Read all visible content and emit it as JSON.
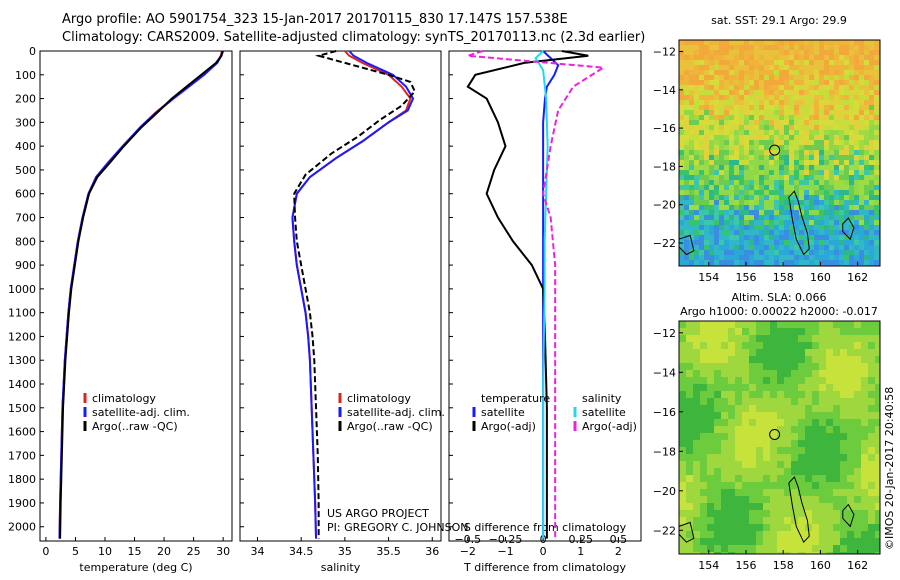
{
  "header": {
    "line1": "Argo profile: AO 5901754_323 15-Jan-2017 20170115_830 17.147S 157.538E",
    "line2": "Climatology: CARS2009. Satellite-adjusted climatology: synTS_20170113.nc (2.3d earlier)"
  },
  "colors": {
    "climatology": "#dd2222",
    "satellite": "#1a1aff",
    "argo": "#000000",
    "salinity_satellite": "#22d8ee",
    "salinity_argo": "#ee22dd"
  },
  "chart_data": [
    {
      "type": "line",
      "id": "temperature",
      "xlabel": "temperature (deg C)",
      "ylabel": "",
      "xlim": [
        -1,
        31.5
      ],
      "ylim": [
        2060,
        0
      ],
      "xticks": [
        0,
        5,
        10,
        15,
        20,
        25,
        30
      ],
      "yticks": [
        0,
        100,
        200,
        300,
        400,
        500,
        600,
        700,
        800,
        900,
        1000,
        1100,
        1200,
        1300,
        1400,
        1500,
        1600,
        1700,
        1800,
        1900,
        2000
      ],
      "legend": [
        "climatology",
        "satellite-adj. clim.",
        "Argo(..raw -QC)"
      ],
      "series": [
        {
          "name": "climatology",
          "color": "#dd2222",
          "x": [
            29.8,
            29.6,
            29.0,
            26.5,
            24.0,
            21.5,
            18.5,
            16.0,
            13.0,
            10.5,
            8.5,
            7.2,
            6.2,
            5.4,
            4.8,
            4.2,
            3.8,
            3.5,
            3.2,
            3.0,
            2.8,
            2.6,
            2.4,
            2.3
          ],
          "y": [
            0,
            20,
            50,
            100,
            150,
            200,
            260,
            320,
            400,
            470,
            530,
            600,
            700,
            800,
            900,
            1000,
            1100,
            1200,
            1300,
            1400,
            1500,
            1700,
            1900,
            2050
          ]
        },
        {
          "name": "satellite-adj. clim.",
          "color": "#1a1aff",
          "x": [
            30.0,
            29.7,
            29.0,
            26.8,
            24.2,
            21.6,
            18.6,
            16.0,
            13.0,
            10.5,
            8.5,
            7.2,
            6.2,
            5.4,
            4.8,
            4.2,
            3.8,
            3.5,
            3.2,
            3.0,
            2.8,
            2.6,
            2.4,
            2.3
          ],
          "y": [
            0,
            20,
            50,
            100,
            150,
            200,
            260,
            320,
            400,
            470,
            530,
            600,
            700,
            800,
            900,
            1000,
            1100,
            1200,
            1300,
            1400,
            1500,
            1700,
            1900,
            2050
          ]
        },
        {
          "name": "Argo(..raw -QC)",
          "color": "#000000",
          "x": [
            29.9,
            29.7,
            28.8,
            26.3,
            23.8,
            21.3,
            18.8,
            16.2,
            13.2,
            10.8,
            8.7,
            7.3,
            6.3,
            5.5,
            4.9,
            4.3,
            3.9,
            3.6,
            3.3,
            3.1,
            2.9,
            2.7,
            2.5,
            2.4
          ],
          "y": [
            0,
            20,
            50,
            100,
            150,
            200,
            260,
            320,
            400,
            470,
            530,
            600,
            700,
            800,
            900,
            1000,
            1100,
            1200,
            1300,
            1400,
            1500,
            1700,
            1900,
            2050
          ]
        }
      ]
    },
    {
      "type": "line",
      "id": "salinity",
      "xlabel": "salinity",
      "ylabel": "",
      "xlim": [
        33.8,
        36.1
      ],
      "ylim": [
        2060,
        0
      ],
      "xticks": [
        34,
        34.5,
        35,
        35.5,
        36
      ],
      "legend": [
        "climatology",
        "satellite-adj. clim.",
        "Argo(..raw -QC)"
      ],
      "annotation": [
        "US ARGO PROJECT",
        "PI: GREGORY C. JOHNSON"
      ],
      "series": [
        {
          "name": "climatology",
          "color": "#dd2222",
          "x": [
            35.0,
            35.05,
            35.2,
            35.5,
            35.65,
            35.75,
            35.7,
            35.5,
            35.2,
            34.9,
            34.6,
            34.45,
            34.4,
            34.42,
            34.45,
            34.5,
            34.55,
            34.58,
            34.6,
            34.62,
            34.64,
            34.66,
            34.67
          ],
          "y": [
            0,
            20,
            50,
            100,
            150,
            200,
            250,
            300,
            380,
            450,
            530,
            600,
            700,
            800,
            900,
            1000,
            1100,
            1200,
            1300,
            1500,
            1700,
            1900,
            2050
          ]
        },
        {
          "name": "satellite-adj. clim.",
          "color": "#1a1aff",
          "x": [
            35.05,
            35.1,
            35.25,
            35.55,
            35.7,
            35.78,
            35.72,
            35.5,
            35.2,
            34.9,
            34.6,
            34.45,
            34.4,
            34.42,
            34.45,
            34.5,
            34.55,
            34.58,
            34.6,
            34.62,
            34.64,
            34.66,
            34.67
          ],
          "y": [
            0,
            20,
            50,
            100,
            150,
            200,
            250,
            300,
            380,
            450,
            530,
            600,
            700,
            800,
            900,
            1000,
            1100,
            1200,
            1300,
            1500,
            1700,
            1900,
            2050
          ]
        },
        {
          "name": "Argo(..raw -QC)",
          "color": "#000000",
          "x": [
            34.9,
            34.7,
            35.0,
            35.5,
            35.75,
            35.8,
            35.65,
            35.4,
            35.15,
            34.85,
            34.55,
            34.42,
            34.43,
            34.45,
            34.5,
            34.55,
            34.6,
            34.63,
            34.65,
            34.67,
            34.69,
            34.7,
            34.7
          ],
          "y": [
            0,
            20,
            50,
            100,
            130,
            170,
            230,
            290,
            360,
            430,
            520,
            600,
            700,
            800,
            900,
            1000,
            1100,
            1200,
            1300,
            1500,
            1700,
            1900,
            2050
          ]
        }
      ]
    },
    {
      "type": "line",
      "id": "difference",
      "xlabel": "T difference from climatology",
      "xlabel2": "S difference from climatology",
      "ylabel": "",
      "xlim": [
        -2.5,
        2.6
      ],
      "ylim": [
        2060,
        0
      ],
      "xticks": [
        -2,
        -1,
        0,
        1,
        2
      ],
      "s_ticks": [
        -0.5,
        -0.25,
        0,
        0.25,
        0.5
      ],
      "legend_temperature": {
        "title": "temperature",
        "items": [
          "satellite",
          "Argo(-adj)"
        ]
      },
      "legend_salinity": {
        "title": "salinity",
        "items": [
          "satellite",
          "Argo(-adj)"
        ]
      },
      "series": [
        {
          "name": "satellite",
          "quantity": "temperature",
          "color": "#1a1aff",
          "x": [
            0.0,
            0.2,
            0.4,
            0.3,
            0.1,
            0.05,
            0.0,
            0.0,
            0.0,
            0.0,
            0.0
          ],
          "y": [
            0,
            30,
            60,
            100,
            150,
            200,
            300,
            500,
            800,
            1200,
            2050
          ]
        },
        {
          "name": "Argo(-adj)",
          "quantity": "temperature",
          "color": "#000000",
          "x": [
            0.5,
            1.2,
            -0.5,
            -1.8,
            -2.0,
            -1.5,
            -1.2,
            -1.0,
            -1.3,
            -1.5,
            -1.2,
            -0.8,
            -0.3,
            0.0,
            0.05,
            0.1,
            0.1,
            0.1
          ],
          "y": [
            0,
            20,
            50,
            100,
            150,
            200,
            300,
            400,
            500,
            600,
            700,
            800,
            900,
            1000,
            1200,
            1500,
            1800,
            2050
          ]
        },
        {
          "name": "satellite",
          "quantity": "salinity",
          "color": "#22d8ee",
          "x": [
            0.0,
            -0.05,
            0.0,
            0.02,
            0.03,
            0.02,
            0.01,
            0.01,
            0.0,
            0.0
          ],
          "y": [
            0,
            30,
            80,
            200,
            400,
            600,
            800,
            1000,
            1400,
            2050
          ]
        },
        {
          "name": "Argo(-adj)",
          "quantity": "salinity",
          "color": "#ee22dd",
          "x": [
            -0.4,
            -0.5,
            0.4,
            0.2,
            0.1,
            0.05,
            0.0,
            0.05,
            0.08,
            0.08,
            0.08,
            0.08
          ],
          "y": [
            0,
            20,
            70,
            150,
            250,
            400,
            600,
            700,
            900,
            1200,
            1600,
            2050
          ]
        }
      ]
    },
    {
      "type": "heatmap",
      "id": "sst-map",
      "title": "sat. SST: 29.1  Argo: 29.9",
      "xlim": [
        152.4,
        163.2
      ],
      "ylim": [
        -23.2,
        -11.4
      ],
      "xticks": [
        154,
        156,
        158,
        160,
        162
      ],
      "yticks": [
        -12,
        -14,
        -16,
        -18,
        -20,
        -22
      ],
      "marker": {
        "lon": 157.538,
        "lat": -17.147
      }
    },
    {
      "type": "heatmap",
      "id": "sla-map",
      "title": "Altim. SLA: 0.066",
      "subtitle": "Argo h1000: 0.00022 h2000: -0.017",
      "xlim": [
        152.4,
        163.2
      ],
      "ylim": [
        -23.2,
        -11.4
      ],
      "xticks": [
        154,
        156,
        158,
        160,
        162
      ],
      "yticks": [
        -12,
        -14,
        -16,
        -18,
        -20,
        -22
      ],
      "marker": {
        "lon": 157.538,
        "lat": -17.147
      }
    }
  ],
  "footer": {
    "copyright": "©IMOS 20-Jan-2017 20:40:58"
  }
}
